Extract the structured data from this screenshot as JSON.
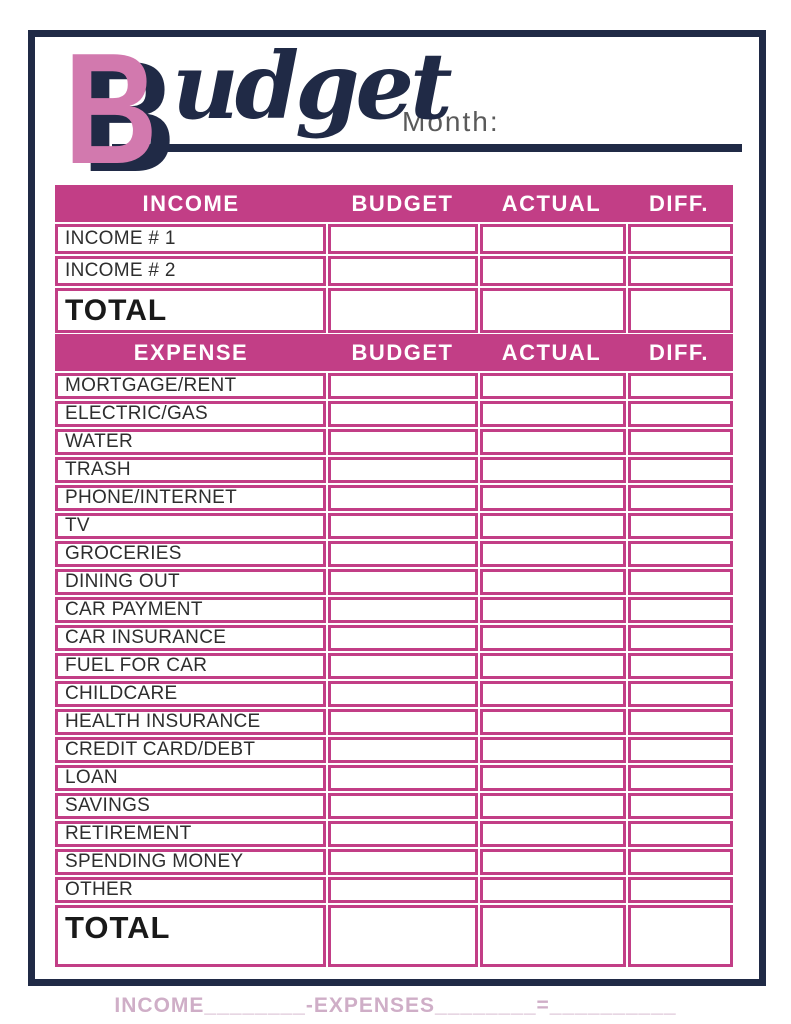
{
  "title": {
    "letter": "B",
    "script": "udget",
    "month_label": "Month:"
  },
  "income_table": {
    "headers": [
      "INCOME",
      "BUDGET",
      "ACTUAL",
      "DIFF."
    ],
    "rows": [
      "INCOME # 1",
      "INCOME # 2"
    ],
    "total_label": "TOTAL",
    "value_columns": [
      "budget",
      "actual",
      "diff"
    ],
    "values": {
      "budget": "",
      "actual": "",
      "diff": ""
    }
  },
  "expense_table": {
    "headers": [
      "EXPENSE",
      "BUDGET",
      "ACTUAL",
      "DIFF."
    ],
    "rows": [
      "MORTGAGE/RENT",
      "ELECTRIC/GAS",
      "WATER",
      "TRASH",
      "PHONE/INTERNET",
      "TV",
      "GROCERIES",
      "DINING OUT",
      "CAR PAYMENT",
      "CAR INSURANCE",
      "FUEL FOR CAR",
      "CHILDCARE",
      "HEALTH INSURANCE",
      "CREDIT CARD/DEBT",
      "LOAN",
      "SAVINGS",
      "RETIREMENT",
      "SPENDING MONEY",
      "OTHER"
    ],
    "total_label": "TOTAL",
    "value_columns": [
      "budget",
      "actual",
      "diff"
    ],
    "values": {
      "budget": "",
      "actual": "",
      "diff": ""
    }
  },
  "footer": {
    "formula": "INCOME________-EXPENSES________=__________"
  },
  "colors": {
    "pink": "#c23e86",
    "pink_light": "#d279ae",
    "navy": "#202a46",
    "footer_pink": "#cfaec7"
  }
}
